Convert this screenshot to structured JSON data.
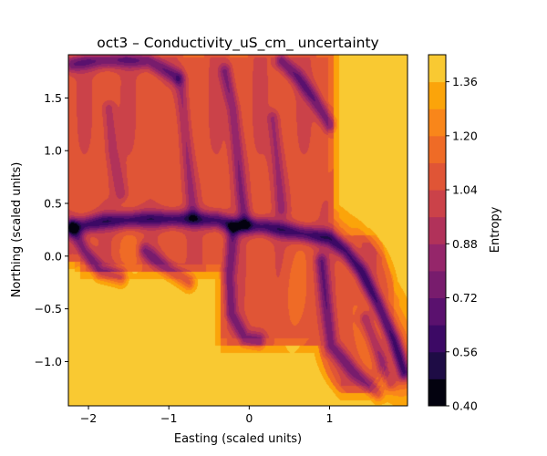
{
  "chart_data": {
    "type": "heatmap",
    "subtype": "filled-contour",
    "title": "oct3 – Conductivity_uS_cm_ uncertainty",
    "xlabel": "Easting (scaled units)",
    "ylabel": "Northing (scaled units)",
    "xlim": [
      -2.25,
      1.97
    ],
    "ylim": [
      -1.42,
      1.91
    ],
    "xticks": [
      -2,
      -1,
      0,
      1
    ],
    "xtick_labels": [
      "−2",
      "−1",
      "0",
      "1"
    ],
    "yticks": [
      -1.0,
      -0.5,
      0.0,
      0.5,
      1.0,
      1.5
    ],
    "ytick_labels": [
      "−1.0",
      "−0.5",
      "0.0",
      "0.5",
      "1.0",
      "1.5"
    ],
    "grid": false,
    "colorbar": {
      "label": "Entropy",
      "colormap": "inferno",
      "levels": [
        0.4,
        0.48,
        0.56,
        0.64,
        0.72,
        0.8,
        0.88,
        0.96,
        1.04,
        1.12,
        1.2,
        1.28,
        1.36,
        1.44
      ],
      "colors": [
        "#000004",
        "#1b0c41",
        "#4a0c6b",
        "#781c6d",
        "#a52c60",
        "#cf4446",
        "#ed6925",
        "#fb9b06",
        "#f7d13d",
        "#fcffa4"
      ],
      "band_colors": [
        "#03020f",
        "#1e0c45",
        "#3c0965",
        "#5a116e",
        "#781c6d",
        "#95266a",
        "#b1325a",
        "#cb4249",
        "#e05536",
        "#ef6b26",
        "#f9861a",
        "#fba40a",
        "#f9c932",
        "#f1f179"
      ],
      "ticks": [
        0.4,
        0.56,
        0.72,
        0.88,
        1.04,
        1.2,
        1.36
      ],
      "tick_labels": [
        "0.40",
        "0.56",
        "0.72",
        "0.88",
        "1.04",
        "1.20",
        "1.36"
      ]
    },
    "features": {
      "background_level": 1.4,
      "ridges": [
        {
          "pts": [
            [
              -2.2,
              0.27
            ],
            [
              -1.8,
              0.33
            ],
            [
              -1.3,
              0.35
            ],
            [
              -0.8,
              0.35
            ],
            [
              -0.4,
              0.34
            ],
            [
              -0.2,
              0.29
            ],
            [
              0.2,
              0.28
            ],
            [
              0.6,
              0.22
            ],
            [
              1.0,
              0.17
            ],
            [
              1.2,
              0.05
            ],
            [
              1.4,
              -0.15
            ],
            [
              1.6,
              -0.45
            ],
            [
              1.8,
              -0.8
            ],
            [
              1.93,
              -1.1
            ]
          ],
          "depth": 0.86
        },
        {
          "pts": [
            [
              -2.2,
              0.27
            ],
            [
              -2.05,
              0.05
            ],
            [
              -1.85,
              -0.15
            ],
            [
              -1.6,
              -0.2
            ]
          ],
          "depth": 0.6
        },
        {
          "pts": [
            [
              -1.3,
              0.05
            ],
            [
              -1.05,
              -0.1
            ],
            [
              -0.75,
              -0.25
            ]
          ],
          "depth": 0.55
        },
        {
          "pts": [
            [
              -0.2,
              0.25
            ],
            [
              -0.25,
              -0.2
            ],
            [
              -0.22,
              -0.55
            ],
            [
              -0.05,
              -0.78
            ],
            [
              0.12,
              -0.8
            ]
          ],
          "depth": 0.55
        },
        {
          "pts": [
            [
              0.9,
              -0.05
            ],
            [
              0.95,
              -0.4
            ],
            [
              1.02,
              -0.85
            ],
            [
              1.3,
              -1.1
            ],
            [
              1.6,
              -1.3
            ]
          ],
          "depth": 0.58
        },
        {
          "pts": [
            [
              1.45,
              -0.6
            ],
            [
              1.6,
              -0.9
            ],
            [
              1.75,
              -1.2
            ]
          ],
          "depth": 0.48
        },
        {
          "pts": [
            [
              -2.2,
              1.82
            ],
            [
              -1.9,
              1.85
            ],
            [
              -1.6,
              1.86
            ],
            [
              -1.25,
              1.85
            ],
            [
              -0.9,
              1.7
            ]
          ],
          "depth": 0.62
        },
        {
          "pts": [
            [
              -0.3,
              1.75
            ],
            [
              -0.2,
              1.4
            ],
            [
              -0.15,
              1.0
            ],
            [
              -0.1,
              0.6
            ],
            [
              -0.05,
              0.32
            ]
          ],
          "depth": 0.5
        },
        {
          "pts": [
            [
              0.4,
              1.85
            ],
            [
              0.6,
              1.7
            ],
            [
              0.8,
              1.5
            ],
            [
              1.0,
              1.25
            ]
          ],
          "depth": 0.62
        },
        {
          "pts": [
            [
              -0.85,
              1.65
            ],
            [
              -0.8,
              1.2
            ],
            [
              -0.75,
              0.8
            ],
            [
              -0.7,
              0.4
            ]
          ],
          "depth": 0.38
        },
        {
          "pts": [
            [
              0.3,
              1.3
            ],
            [
              0.35,
              0.9
            ],
            [
              0.4,
              0.45
            ]
          ],
          "depth": 0.38
        },
        {
          "pts": [
            [
              -1.75,
              1.4
            ],
            [
              -1.7,
              1.0
            ],
            [
              -1.6,
              0.6
            ]
          ],
          "depth": 0.32
        }
      ],
      "blobs": [
        {
          "cx": 1.5,
          "cy": -0.7,
          "sx": 0.17,
          "sy": 0.28,
          "amp": 0.12
        },
        {
          "cx": 0.55,
          "cy": -0.35,
          "sx": 0.1,
          "sy": 0.3,
          "amp": 0.1
        },
        {
          "cx": -0.95,
          "cy": 1.25,
          "sx": 0.1,
          "sy": 0.3,
          "amp": 0.08
        },
        {
          "cx": -1.45,
          "cy": 0.05,
          "sx": 0.15,
          "sy": 0.12,
          "amp": 0.08
        }
      ]
    }
  }
}
